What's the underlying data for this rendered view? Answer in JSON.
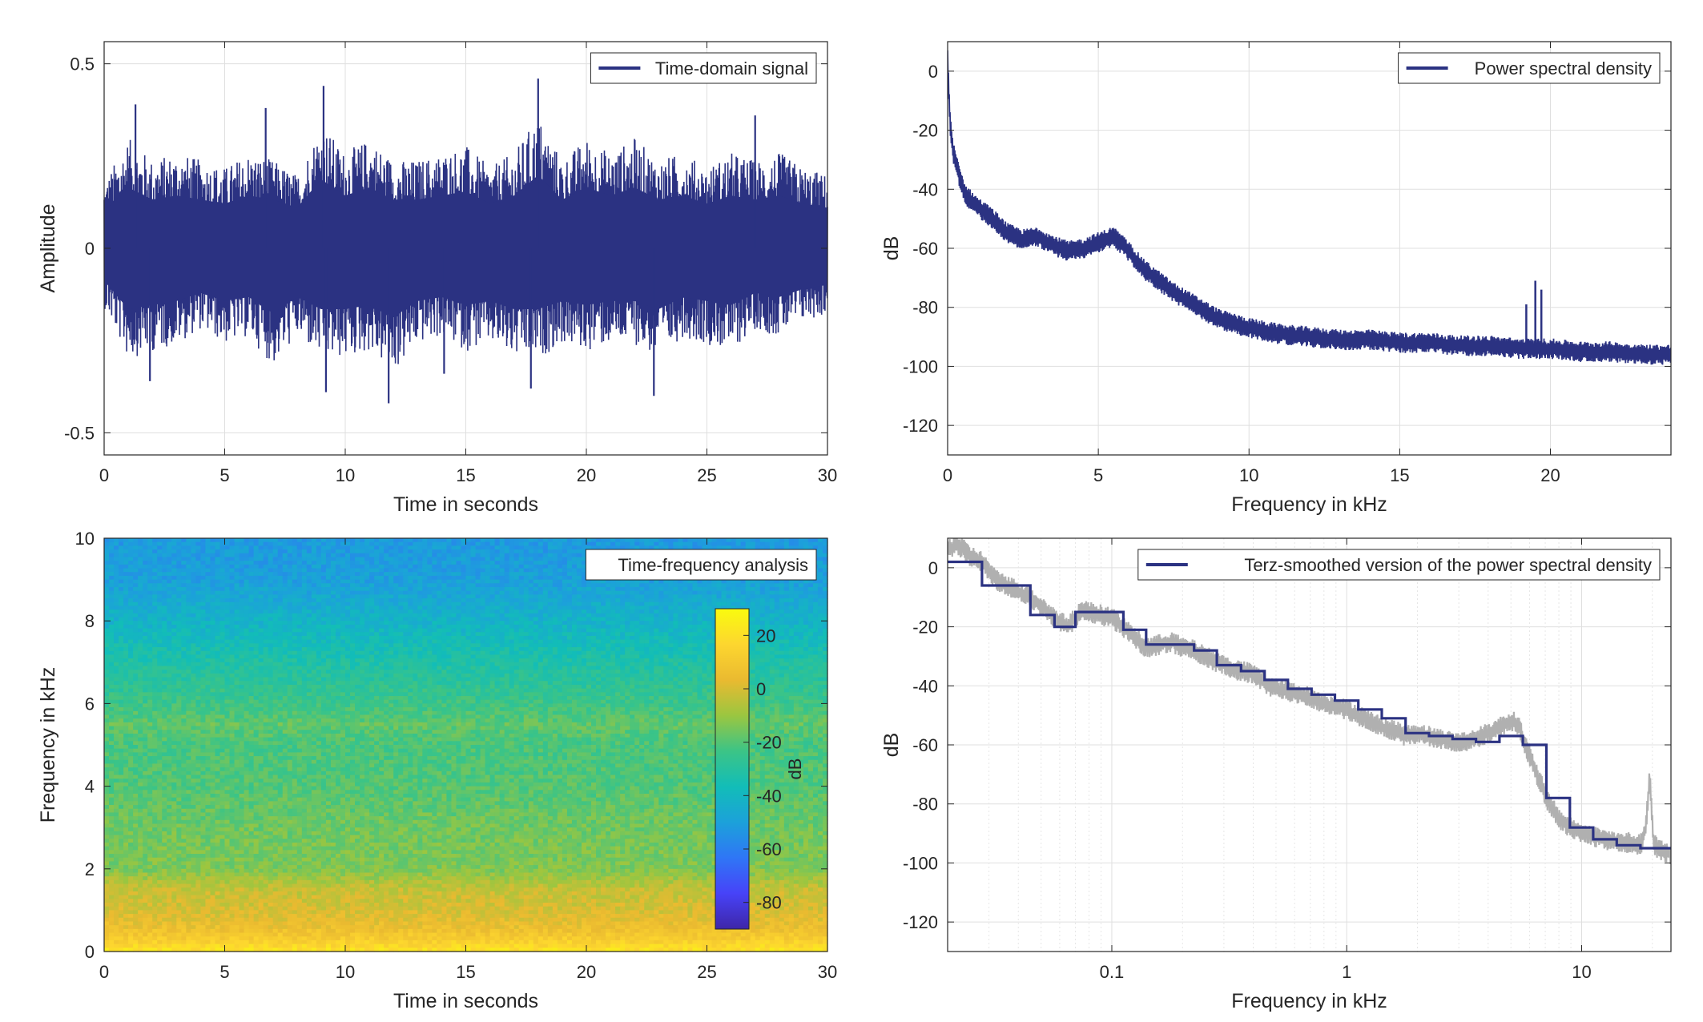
{
  "chart_data": [
    {
      "type": "line",
      "id": "time-domain",
      "xlabel": "Time in seconds",
      "ylabel": "Amplitude",
      "xlim": [
        0,
        30
      ],
      "ylim": [
        -0.56,
        0.56
      ],
      "xticks": [
        0,
        5,
        10,
        15,
        20,
        25,
        30
      ],
      "xtick_labels": [
        "0",
        "5",
        "10",
        "15",
        "20",
        "25",
        "30"
      ],
      "yticks": [
        -0.5,
        0,
        0.5
      ],
      "ytick_labels": [
        "-0.5",
        "0",
        "0.5"
      ],
      "grid": true,
      "legend_position": "top-right",
      "series": [
        {
          "name": "Time-domain signal",
          "color": "#2b3282",
          "envelope": {
            "t": [
              0,
              1,
              2,
              3,
              4,
              5,
              6,
              7,
              8,
              9,
              10,
              11,
              12,
              13,
              14,
              15,
              16,
              17,
              18,
              19,
              20,
              21,
              22,
              23,
              24,
              25,
              26,
              27,
              28,
              29,
              30
            ],
            "upper": [
              0.18,
              0.3,
              0.24,
              0.26,
              0.24,
              0.22,
              0.26,
              0.24,
              0.2,
              0.34,
              0.26,
              0.3,
              0.24,
              0.24,
              0.26,
              0.28,
              0.22,
              0.26,
              0.36,
              0.24,
              0.3,
              0.26,
              0.3,
              0.24,
              0.26,
              0.22,
              0.26,
              0.24,
              0.26,
              0.22,
              0.2
            ],
            "lower": [
              -0.16,
              -0.3,
              -0.28,
              -0.26,
              -0.22,
              -0.26,
              -0.24,
              -0.32,
              -0.24,
              -0.3,
              -0.3,
              -0.28,
              -0.34,
              -0.26,
              -0.24,
              -0.28,
              -0.26,
              -0.3,
              -0.3,
              -0.26,
              -0.28,
              -0.26,
              -0.26,
              -0.3,
              -0.24,
              -0.26,
              -0.28,
              -0.22,
              -0.24,
              -0.2,
              -0.18
            ]
          },
          "spikes": [
            {
              "t": 1.3,
              "y": 0.39
            },
            {
              "t": 6.7,
              "y": 0.38
            },
            {
              "t": 9.1,
              "y": 0.44
            },
            {
              "t": 18.0,
              "y": 0.46
            },
            {
              "t": 27.0,
              "y": 0.36
            },
            {
              "t": 1.9,
              "y": -0.36
            },
            {
              "t": 9.2,
              "y": -0.39
            },
            {
              "t": 11.8,
              "y": -0.42
            },
            {
              "t": 22.8,
              "y": -0.4
            },
            {
              "t": 17.7,
              "y": -0.38
            },
            {
              "t": 14.1,
              "y": -0.34
            }
          ]
        }
      ]
    },
    {
      "type": "line",
      "id": "psd",
      "xlabel": "Frequency in kHz",
      "ylabel": "dB",
      "xlim": [
        0,
        24
      ],
      "ylim": [
        -130,
        10
      ],
      "xticks": [
        0,
        5,
        10,
        15,
        20
      ],
      "xtick_labels": [
        "0",
        "5",
        "10",
        "15",
        "20"
      ],
      "yticks": [
        0,
        -20,
        -40,
        -60,
        -80,
        -100,
        -120
      ],
      "ytick_labels": [
        "0",
        "-20",
        "-40",
        "-60",
        "-80",
        "-100",
        "-120"
      ],
      "grid": true,
      "legend_position": "top-right",
      "series": [
        {
          "name": "Power spectral density",
          "color": "#2b3282",
          "x": [
            0,
            0.05,
            0.1,
            0.2,
            0.4,
            0.6,
            1,
            1.5,
            2,
            2.5,
            3,
            3.5,
            4,
            4.5,
            5,
            5.5,
            6,
            6.5,
            7,
            7.5,
            8,
            8.5,
            9,
            10,
            11,
            12,
            13,
            14,
            15,
            16,
            17,
            18,
            19,
            20,
            21,
            22,
            23,
            24
          ],
          "y": [
            5,
            -10,
            -20,
            -28,
            -36,
            -42,
            -46,
            -50,
            -55,
            -57,
            -56,
            -59,
            -61,
            -60,
            -58,
            -56,
            -61,
            -67,
            -71,
            -75,
            -78,
            -81,
            -84,
            -87,
            -89,
            -90,
            -91,
            -91,
            -92,
            -92,
            -93,
            -93,
            -94,
            -94,
            -95,
            -95,
            -96,
            -96
          ],
          "band_halfwidth": 2.5,
          "peaks": [
            {
              "x": 19.5,
              "y": -71
            },
            {
              "x": 19.7,
              "y": -74
            },
            {
              "x": 19.2,
              "y": -79
            }
          ]
        }
      ]
    },
    {
      "type": "heatmap",
      "id": "spectrogram",
      "xlabel": "Time in seconds",
      "ylabel": "Frequency in kHz",
      "xlim": [
        0,
        30
      ],
      "ylim": [
        0,
        10
      ],
      "xticks": [
        0,
        5,
        10,
        15,
        20,
        25,
        30
      ],
      "xtick_labels": [
        "0",
        "5",
        "10",
        "15",
        "20",
        "25",
        "30"
      ],
      "yticks": [
        0,
        2,
        4,
        6,
        8,
        10
      ],
      "ytick_labels": [
        "0",
        "2",
        "4",
        "6",
        "8",
        "10"
      ],
      "legend_position": "top-right",
      "legend_label": "Time-frequency analysis",
      "colorbar": {
        "label": "dB",
        "range": [
          -90,
          30
        ],
        "ticks": [
          20,
          0,
          -20,
          -40,
          -60,
          -80
        ],
        "tick_labels": [
          "20",
          "0",
          "-20",
          "-40",
          "-60",
          "-80"
        ],
        "colormap": [
          "#3e26a8",
          "#4743f8",
          "#2f76f6",
          "#1ca1da",
          "#12bdb8",
          "#3cc486",
          "#9bc640",
          "#eaba30",
          "#fdd62f",
          "#f9fb0e"
        ]
      },
      "level_profile": {
        "freq_khz": [
          0,
          0.3,
          0.6,
          1.0,
          1.5,
          2.0,
          3.0,
          4.0,
          5.0,
          5.5,
          6.0,
          7.0,
          8.0,
          9.0,
          10.0
        ],
        "db": [
          22,
          12,
          5,
          0,
          -3,
          -14,
          -16,
          -20,
          -22,
          -18,
          -24,
          -32,
          -42,
          -50,
          -52
        ]
      }
    },
    {
      "type": "line",
      "id": "terz-psd",
      "xlabel": "Frequency in kHz",
      "ylabel": "dB",
      "xscale": "log",
      "xlim": [
        0.02,
        24
      ],
      "ylim": [
        -130,
        10
      ],
      "xticks": [
        0.1,
        1,
        10
      ],
      "xtick_labels": [
        "0.1",
        "1",
        "10"
      ],
      "yticks": [
        0,
        -20,
        -40,
        -60,
        -80,
        -100,
        -120
      ],
      "ytick_labels": [
        "0",
        "-20",
        "-40",
        "-60",
        "-80",
        "-100",
        "-120"
      ],
      "grid": true,
      "legend_position": "top-right",
      "series": [
        {
          "name": "Terz-smoothed version of the power spectral density",
          "color": "#2b3282",
          "step_edges_khz": [
            0.02,
            0.028,
            0.045,
            0.057,
            0.07,
            0.09,
            0.112,
            0.14,
            0.178,
            0.224,
            0.28,
            0.355,
            0.447,
            0.562,
            0.708,
            0.891,
            1.12,
            1.41,
            1.78,
            2.24,
            2.82,
            3.55,
            4.47,
            5.62,
            7.08,
            8.91,
            11.2,
            14.1,
            17.8,
            24
          ],
          "step_db": [
            2,
            -6,
            -16,
            -20,
            -15,
            -15,
            -21,
            -26,
            -26,
            -28,
            -33,
            -35,
            -38,
            -41,
            -43,
            -45,
            -48,
            -51,
            -56,
            -57,
            -58,
            -59,
            -57,
            -60,
            -78,
            -88,
            -92,
            -94,
            -95
          ]
        },
        {
          "name": "",
          "color": "#b0b0b0",
          "role": "raw",
          "x": [
            0.02,
            0.022,
            0.025,
            0.028,
            0.032,
            0.036,
            0.04,
            0.045,
            0.05,
            0.057,
            0.065,
            0.07,
            0.075,
            0.08,
            0.09,
            0.1,
            0.112,
            0.126,
            0.14,
            0.16,
            0.178,
            0.2,
            0.224,
            0.25,
            0.28,
            0.32,
            0.355,
            0.4,
            0.447,
            0.5,
            0.562,
            0.63,
            0.708,
            0.8,
            0.891,
            1.0,
            1.12,
            1.26,
            1.41,
            1.58,
            1.78,
            2.0,
            2.24,
            2.5,
            2.82,
            3.16,
            3.55,
            4.0,
            4.47,
            5.0,
            5.4,
            5.62,
            6.3,
            7.08,
            8.0,
            8.91,
            10.0,
            11.2,
            12.6,
            14.1,
            16.0,
            17.8,
            18.8,
            19.5,
            20.2,
            21,
            22.4,
            24
          ],
          "y": [
            6,
            8,
            4,
            2,
            -4,
            -6,
            -8,
            -10,
            -13,
            -17,
            -20,
            -17,
            -14,
            -15,
            -16,
            -17,
            -20,
            -24,
            -27,
            -26,
            -25,
            -27,
            -28,
            -30,
            -32,
            -34,
            -35,
            -36,
            -39,
            -41,
            -42,
            -43,
            -44,
            -46,
            -47,
            -48,
            -50,
            -52,
            -54,
            -55,
            -57,
            -56,
            -57,
            -58,
            -59,
            -59,
            -58,
            -56,
            -54,
            -52,
            -53,
            -58,
            -68,
            -78,
            -85,
            -88,
            -90,
            -91,
            -92,
            -93,
            -93,
            -94,
            -88,
            -70,
            -93,
            -95,
            -96,
            -97
          ],
          "band_halfwidth": 3
        }
      ]
    }
  ]
}
